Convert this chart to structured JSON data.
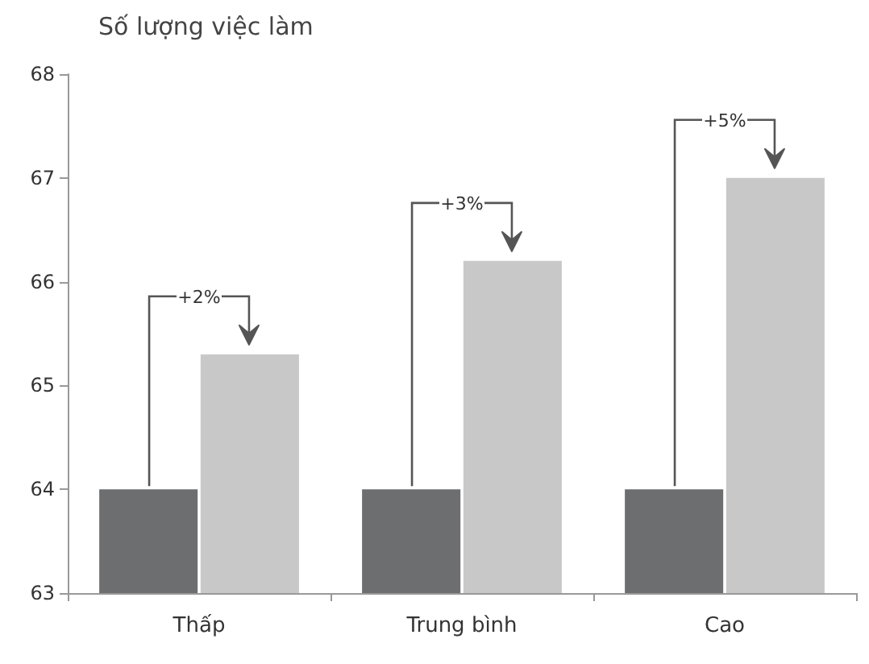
{
  "chart_data": {
    "type": "bar",
    "title": "Số lượng việc làm",
    "categories": [
      "Thấp",
      "Trung bình",
      "Cao"
    ],
    "series": [
      {
        "color": "#6d6e70",
        "values": [
          64,
          64,
          64
        ]
      },
      {
        "color": "#c8c8c8",
        "values": [
          65.3,
          66.2,
          67.0
        ]
      }
    ],
    "ylim": [
      63,
      68
    ],
    "yticks": [
      63,
      64,
      65,
      66,
      67,
      68
    ],
    "grid": false,
    "annotations": [
      {
        "text": "+2%",
        "x": "Thấp",
        "y": 65.3
      },
      {
        "text": "+3%",
        "x": "Trung bình",
        "y": 66.2
      },
      {
        "text": "+5%",
        "x": "Cao",
        "y": 67.0
      }
    ]
  }
}
